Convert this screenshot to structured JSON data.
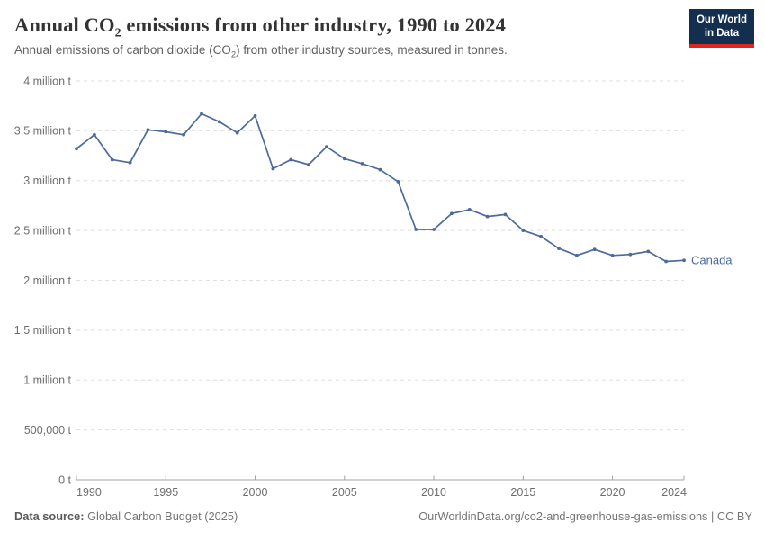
{
  "header": {
    "title_full": "Annual CO₂ emissions from other industry, 1990 to 2024",
    "title_parts": {
      "pre": "Annual CO",
      "sub": "2",
      "post": " emissions from other industry, 1990 to 2024"
    },
    "subtitle_parts": {
      "pre": "Annual emissions of carbon dioxide (CO",
      "sub": "2",
      "post": ") from other industry sources, measured in tonnes."
    },
    "logo": {
      "line1": "Our World",
      "line2": "in Data",
      "bg_color": "#132e4f",
      "accent_color": "#e0261c"
    }
  },
  "chart_data": {
    "type": "line",
    "title": "Annual CO₂ emissions from other industry, 1990 to 2024",
    "subtitle": "Annual emissions of carbon dioxide (CO₂) from other industry sources, measured in tonnes.",
    "x": [
      1990,
      1991,
      1992,
      1993,
      1994,
      1995,
      1996,
      1997,
      1998,
      1999,
      2000,
      2001,
      2002,
      2003,
      2004,
      2005,
      2006,
      2007,
      2008,
      2009,
      2010,
      2011,
      2012,
      2013,
      2014,
      2015,
      2016,
      2017,
      2018,
      2019,
      2020,
      2021,
      2022,
      2023,
      2024
    ],
    "series": [
      {
        "name": "Canada",
        "color": "#4C6A9C",
        "values": [
          3320000,
          3460000,
          3210000,
          3180000,
          3510000,
          3490000,
          3460000,
          3670000,
          3590000,
          3480000,
          3650000,
          3120000,
          3210000,
          3160000,
          3340000,
          3220000,
          3170000,
          3110000,
          2990000,
          2510000,
          2510000,
          2670000,
          2710000,
          2640000,
          2660000,
          2500000,
          2440000,
          2320000,
          2250000,
          2310000,
          2250000,
          2260000,
          2290000,
          2190000,
          2200000
        ]
      }
    ],
    "xlim": [
      1990,
      2024
    ],
    "ylim": [
      0,
      4000000
    ],
    "x_ticks": [
      1990,
      1995,
      2000,
      2005,
      2010,
      2015,
      2020,
      2024
    ],
    "y_ticks": [
      {
        "value": 4000000,
        "label": "4 million t"
      },
      {
        "value": 3500000,
        "label": "3.5 million t"
      },
      {
        "value": 3000000,
        "label": "3 million t"
      },
      {
        "value": 2500000,
        "label": "2.5 million t"
      },
      {
        "value": 2000000,
        "label": "2 million t"
      },
      {
        "value": 1500000,
        "label": "1.5 million t"
      },
      {
        "value": 1000000,
        "label": "1 million t"
      },
      {
        "value": 500000,
        "label": "500,000 t"
      },
      {
        "value": 0,
        "label": "0 t"
      }
    ],
    "grid": "horizontal-dashed",
    "grid_color": "#dedede",
    "axis_color": "#a3a3a3",
    "legend_position": "end-of-line-label"
  },
  "footer": {
    "datasource_label": "Data source:",
    "datasource_value": " Global Carbon Budget (2025)",
    "attribution": "OurWorldinData.org/co2-and-greenhouse-gas-emissions | CC BY"
  }
}
